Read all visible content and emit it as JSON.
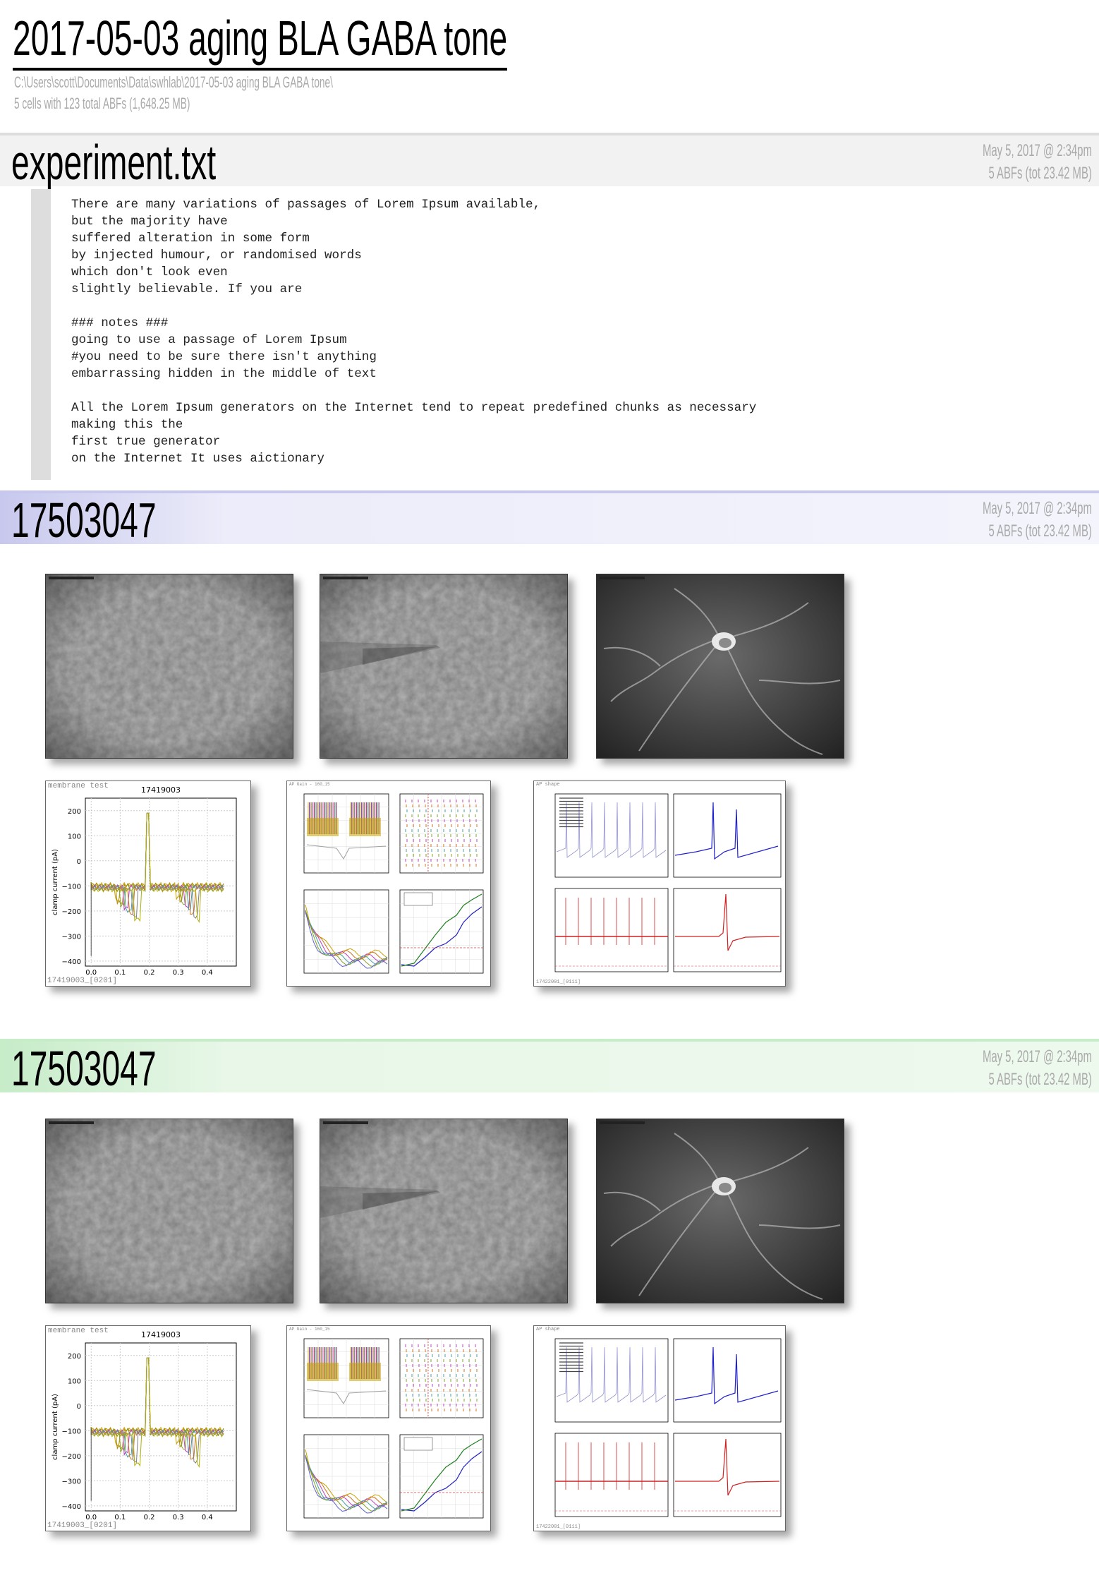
{
  "header": {
    "title": "2017-05-03 aging BLA GABA tone",
    "path": "C:\\Users\\scott\\Documents\\Data\\swhlab\\2017-05-03 aging BLA GABA tone\\",
    "summary": "5 cells with 123 total ABFs (1,648.25 MB)"
  },
  "experiment": {
    "title": "experiment.txt",
    "date": "May 5, 2017 @ 2:34pm",
    "abfs": "5 ABFs (tot 23.42 MB)",
    "notes": "There are many variations of passages of Lorem Ipsum available,\nbut the majority have\nsuffered alteration in some form\nby injected humour, or randomised words\nwhich don't look even\nslightly believable. If you are\n\n### notes ###\ngoing to use a passage of Lorem Ipsum\n#you need to be sure there isn't anything\nembarrassing hidden in the middle of text\n\nAll the Lorem Ipsum generators on the Internet tend to repeat predefined chunks as necessary\nmaking this the\nfirst true generator\non the Internet It uses aictionary"
  },
  "cells": [
    {
      "id": "17503047",
      "date": "May 5, 2017 @ 2:34pm",
      "abfs": "5 ABFs (tot 23.42 MB)",
      "accent": "#c8c8ee",
      "bar_color": "#e6e6f8",
      "membrane_test": {
        "label": "membrane test",
        "title": "17419003",
        "ylabel": "clamp current (pA)",
        "yticks": [
          "200",
          "100",
          "0",
          "−100",
          "−200",
          "−300",
          "−400"
        ],
        "xticks": [
          "0.0",
          "0.1",
          "0.2",
          "0.3",
          "0.4"
        ],
        "footer": "17419003_[0201]"
      },
      "ap_gain": {
        "label": "AP Gain - 160_15"
      },
      "ap_shape": {
        "label": "AP shape",
        "footer": "17422001_[0111]"
      }
    },
    {
      "id": "17503047",
      "date": "May 5, 2017 @ 2:34pm",
      "abfs": "5 ABFs (tot 23.42 MB)",
      "accent": "#c6ecc8",
      "bar_color": "#e4f6e4",
      "membrane_test": {
        "label": "membrane test",
        "title": "17419003",
        "ylabel": "clamp current (pA)",
        "yticks": [
          "200",
          "100",
          "0",
          "−100",
          "−200",
          "−300",
          "−400"
        ],
        "xticks": [
          "0.0",
          "0.1",
          "0.2",
          "0.3",
          "0.4"
        ],
        "footer": "17419003_[0201]"
      },
      "ap_gain": {
        "label": "AP Gain - 160_15"
      },
      "ap_shape": {
        "label": "AP shape",
        "footer": "17422001_[0111]"
      }
    }
  ]
}
